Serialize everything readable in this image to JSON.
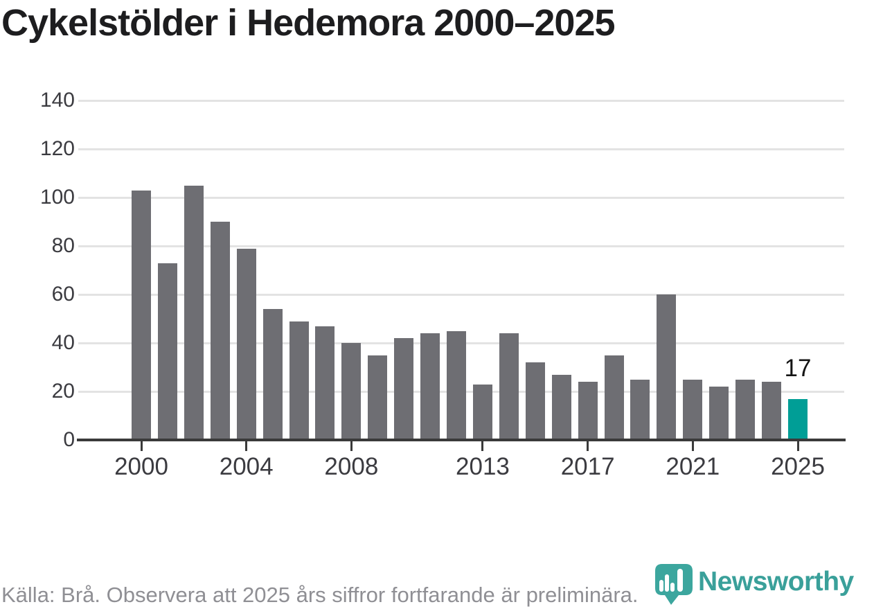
{
  "title": "Cykelstölder i Hedemora 2000–2025",
  "chart_data": {
    "type": "bar",
    "x": [
      2000,
      2001,
      2002,
      2003,
      2004,
      2005,
      2006,
      2007,
      2008,
      2009,
      2010,
      2011,
      2012,
      2013,
      2014,
      2015,
      2016,
      2017,
      2018,
      2019,
      2020,
      2021,
      2022,
      2023,
      2024,
      2025
    ],
    "values": [
      103,
      73,
      105,
      90,
      79,
      54,
      49,
      47,
      40,
      35,
      42,
      44,
      45,
      23,
      44,
      32,
      27,
      24,
      35,
      25,
      60,
      25,
      22,
      25,
      24,
      17
    ],
    "title": "Cykelstölder i Hedemora 2000–2025",
    "xlabel": "",
    "ylabel": "",
    "ylim": [
      0,
      140
    ],
    "yticks": [
      0,
      20,
      40,
      60,
      80,
      100,
      120,
      140
    ],
    "xticks": [
      2000,
      2004,
      2008,
      2013,
      2017,
      2021,
      2025
    ],
    "grid": true,
    "legend": false,
    "bar_color": "#6e6e73",
    "highlight_year": 2025,
    "highlight_color": "#009e96",
    "annotations": [
      {
        "year": 2025,
        "text": "17"
      }
    ]
  },
  "footer": {
    "source_text": "Källa: Brå. Observera att 2025 års siffror fortfarande är preliminära."
  },
  "branding": {
    "name": "Newsworthy",
    "icon": "newsworthy-bubble-barchart-icon",
    "icon_color": "#3ca69e",
    "wordmark_color": "#3aa09a"
  }
}
